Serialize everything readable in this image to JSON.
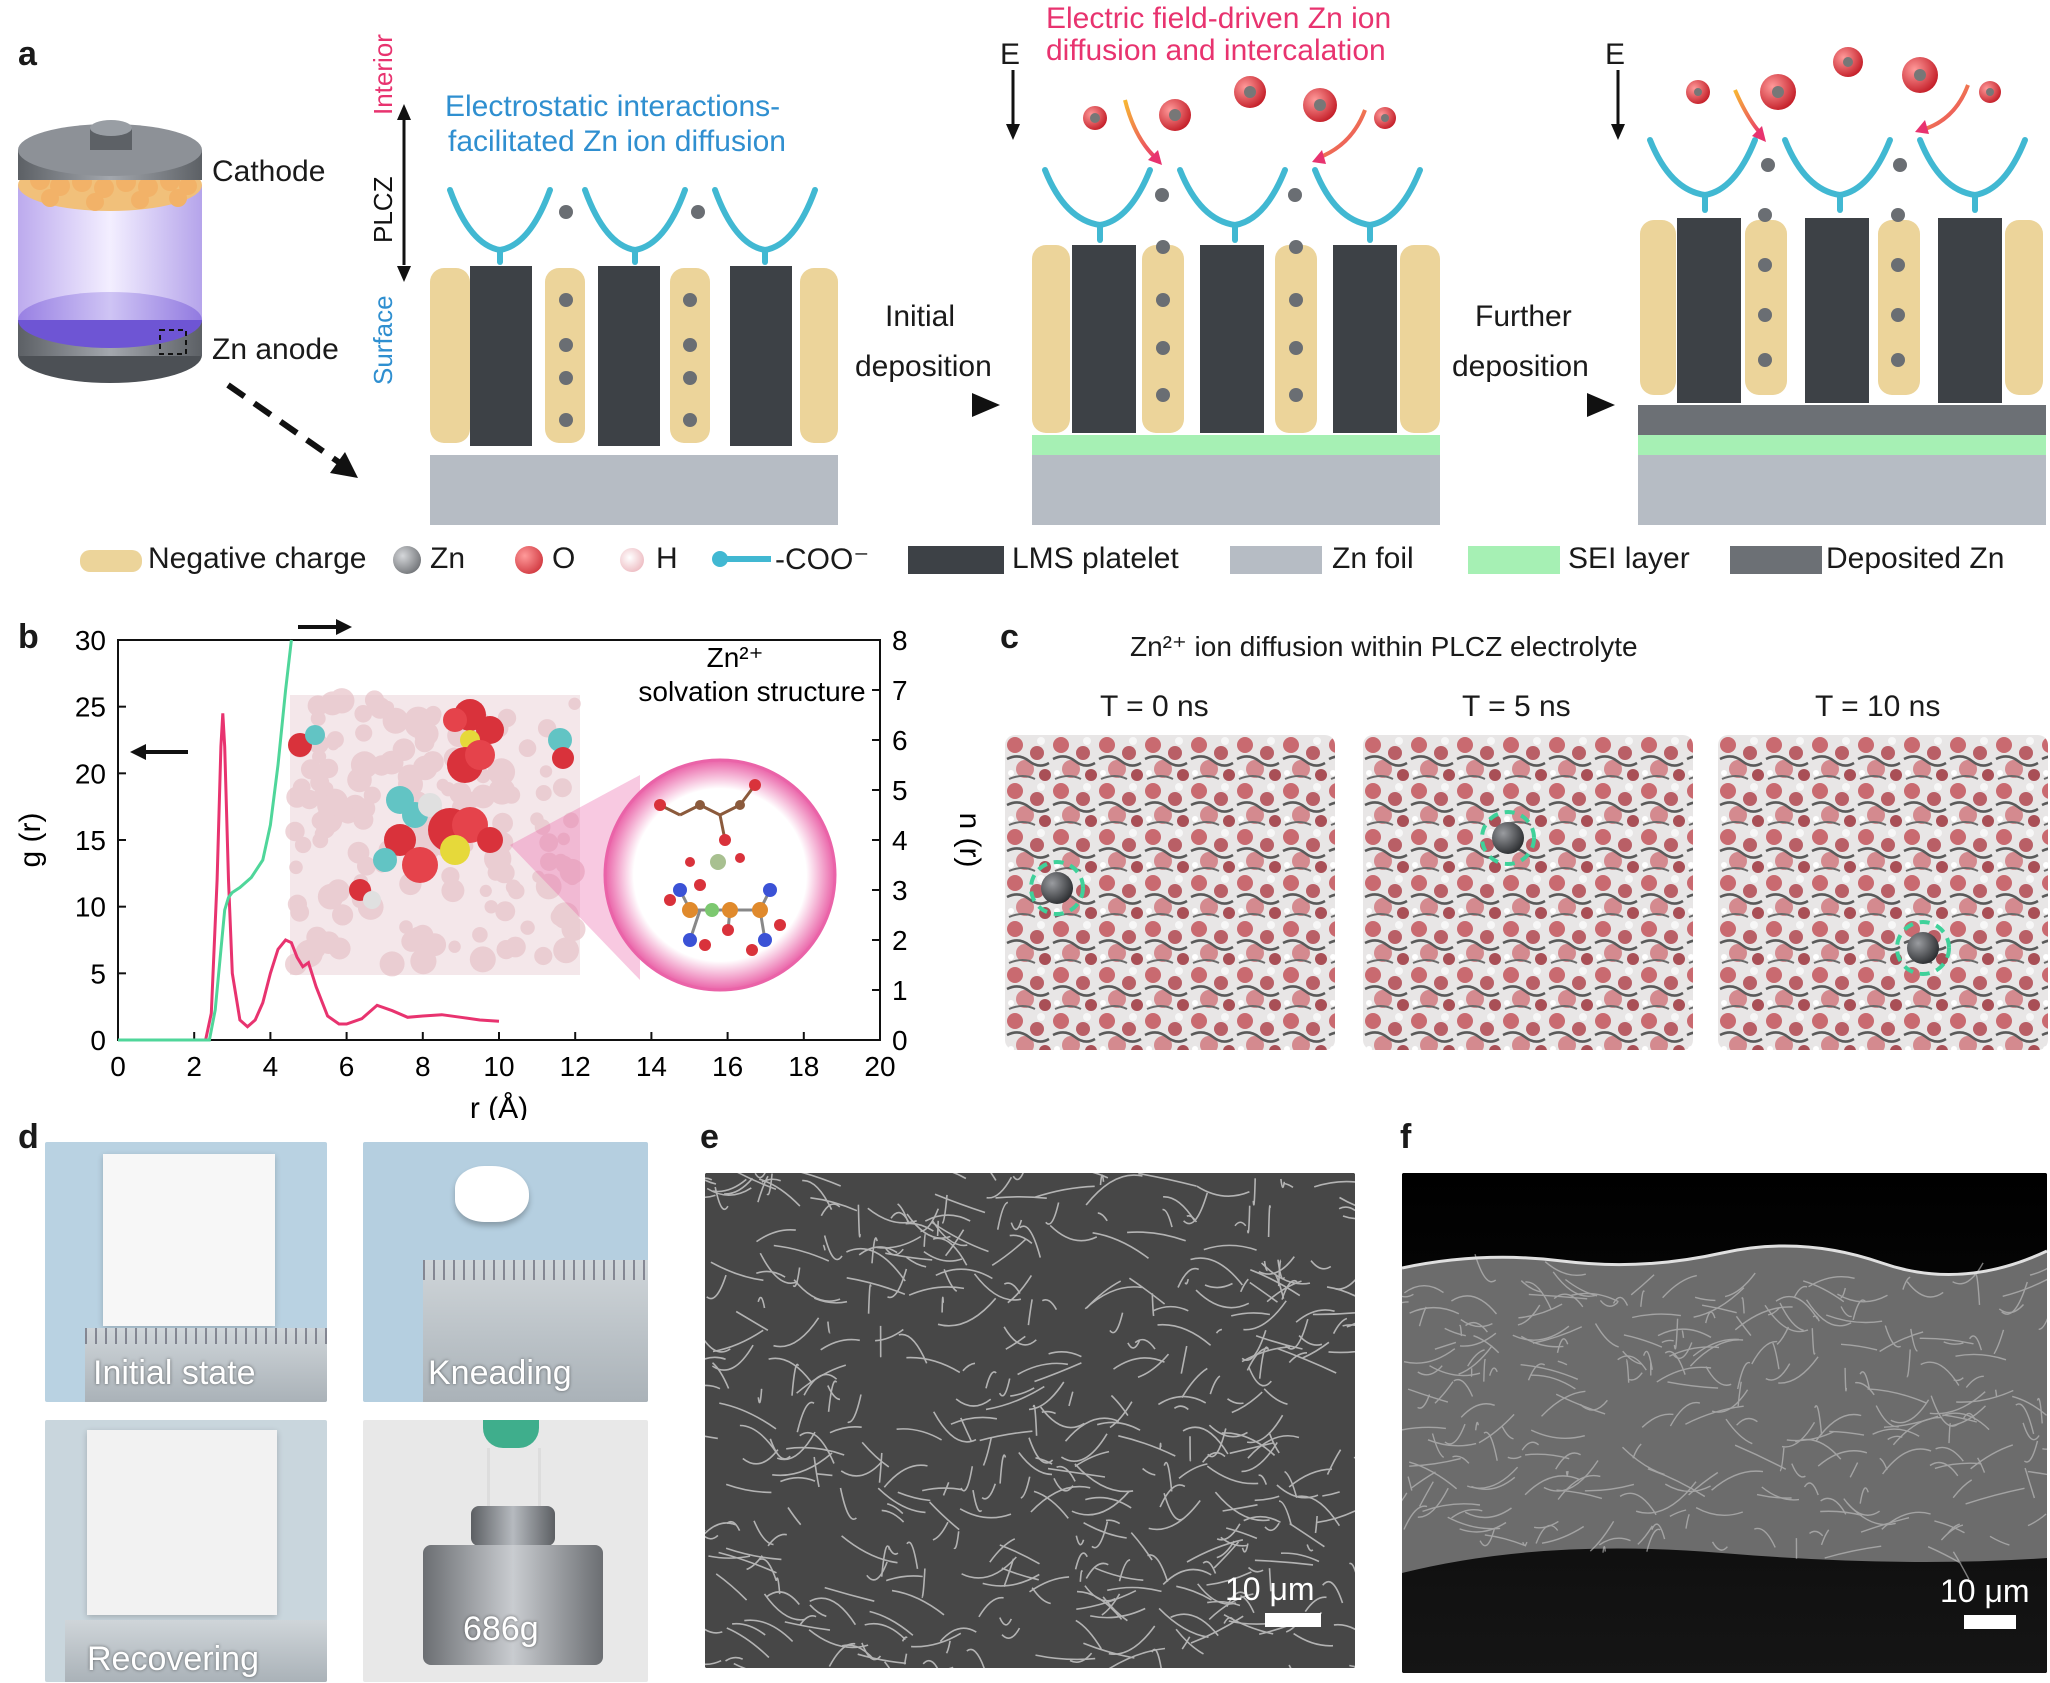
{
  "panel_labels": {
    "a": "a",
    "b": "b",
    "c": "c",
    "d": "d",
    "e": "e",
    "f": "f"
  },
  "panel_a": {
    "battery": {
      "cathode": "Cathode",
      "anode": "Zn anode"
    },
    "axis_top": "Interior",
    "axis_mid": "PLCZ",
    "axis_bottom": "Surface",
    "title1_line1": "Electrostatic interactions-",
    "title1_line2": "facilitated Zn ion diffusion",
    "title2_line1": "Electric field-driven Zn ion",
    "title2_line2": "diffusion and intercalation",
    "field_label": "E",
    "step1_line1": "Initial",
    "step1_line2": "deposition",
    "step2_line1": "Further",
    "step2_line2": "deposition"
  },
  "legend": [
    {
      "label": "Negative charge"
    },
    {
      "label": "Zn"
    },
    {
      "label": "O"
    },
    {
      "label": "H"
    },
    {
      "label": "-COO⁻"
    },
    {
      "label": "LMS platelet"
    },
    {
      "label": "Zn foil"
    },
    {
      "label": "SEI layer"
    },
    {
      "label": "Deposited Zn"
    }
  ],
  "chart_data": {
    "type": "line",
    "xlabel": "r (Å)",
    "ylabel_left": "g (r)",
    "ylabel_right": "n (r)",
    "xlim": [
      0,
      20
    ],
    "ylim_left": [
      0,
      30
    ],
    "ylim_right": [
      0,
      8
    ],
    "x_ticks": [
      0,
      2,
      4,
      6,
      8,
      10,
      12,
      14,
      16,
      18,
      20
    ],
    "y_ticks_left": [
      0,
      5,
      10,
      15,
      20,
      25,
      30
    ],
    "y_ticks_right": [
      0,
      1,
      2,
      3,
      4,
      5,
      6,
      7,
      8
    ],
    "inset_label_line1": "Zn²⁺",
    "inset_label_line2": "solvation structure",
    "series": [
      {
        "axis": "left",
        "color": "#e8336f",
        "x": [
          0,
          2.3,
          2.45,
          2.6,
          2.7,
          2.75,
          2.8,
          2.9,
          3.0,
          3.2,
          3.4,
          3.6,
          3.8,
          4.0,
          4.2,
          4.4,
          4.55,
          4.7,
          4.85,
          5.0,
          5.2,
          5.5,
          5.8,
          6.0,
          6.4,
          6.8,
          7.2,
          7.6,
          8.0,
          8.5,
          9.0,
          9.5,
          10.0
        ],
        "y": [
          0,
          0,
          2,
          12,
          22,
          24.5,
          22,
          12,
          5,
          1.5,
          1.0,
          1.5,
          2.8,
          5,
          6.8,
          7.5,
          7.3,
          6.2,
          5.5,
          5.8,
          4.0,
          1.8,
          1.2,
          1.2,
          1.6,
          2.6,
          2.2,
          1.7,
          1.8,
          1.9,
          1.7,
          1.5,
          1.4
        ]
      },
      {
        "axis": "right",
        "color": "#4fd69a",
        "x": [
          0,
          2.4,
          2.55,
          2.7,
          2.8,
          2.9,
          3.0,
          3.2,
          3.5,
          3.8,
          4.0,
          4.2,
          4.4,
          4.55
        ],
        "y": [
          0,
          0,
          0.6,
          1.8,
          2.6,
          2.85,
          2.95,
          3.05,
          3.25,
          3.6,
          4.3,
          5.5,
          7.0,
          8.0
        ]
      }
    ]
  },
  "panel_c": {
    "title": "Zn²⁺ ion diffusion within PLCZ electrolyte",
    "frames": [
      {
        "label": "T = 0 ns"
      },
      {
        "label": "T = 5 ns"
      },
      {
        "label": "T = 10 ns"
      }
    ]
  },
  "panel_d": {
    "photos": [
      {
        "label": "Initial state"
      },
      {
        "label": "Kneading"
      },
      {
        "label": "Recovering"
      },
      {
        "label": "686g"
      }
    ]
  },
  "panel_e": {
    "scale": "10 μm"
  },
  "panel_f": {
    "scale": "10 μm"
  },
  "colors": {
    "negative_charge": "#ecd49a",
    "zn": "#7a7c80",
    "o": "#e0333c",
    "h": "#f0c8cc",
    "coo": "#41b8d2",
    "lms": "#3d4146",
    "zn_foil": "#b6bcc4",
    "sei": "#a6f0b4",
    "deposited_zn": "#6c7075",
    "accent_pink": "#e8336f",
    "accent_blue": "#2f8fd0"
  }
}
